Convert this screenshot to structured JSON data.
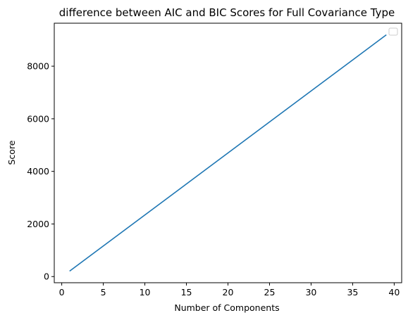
{
  "chart_data": {
    "type": "line",
    "title": "difference between AIC and BIC Scores for Full Covariance Type",
    "xlabel": "Number of Components",
    "ylabel": "Score",
    "xlim": [
      -0.9,
      40.9
    ],
    "ylim": [
      -234,
      9634
    ],
    "xticks": [
      0,
      5,
      10,
      15,
      20,
      25,
      30,
      35,
      40
    ],
    "yticks": [
      0,
      2000,
      4000,
      6000,
      8000
    ],
    "grid": false,
    "legend": "top-right",
    "line_color": "#1f77b4",
    "series": [
      {
        "x": [
          1,
          39
        ],
        "y": [
          220,
          9180
        ]
      }
    ]
  }
}
